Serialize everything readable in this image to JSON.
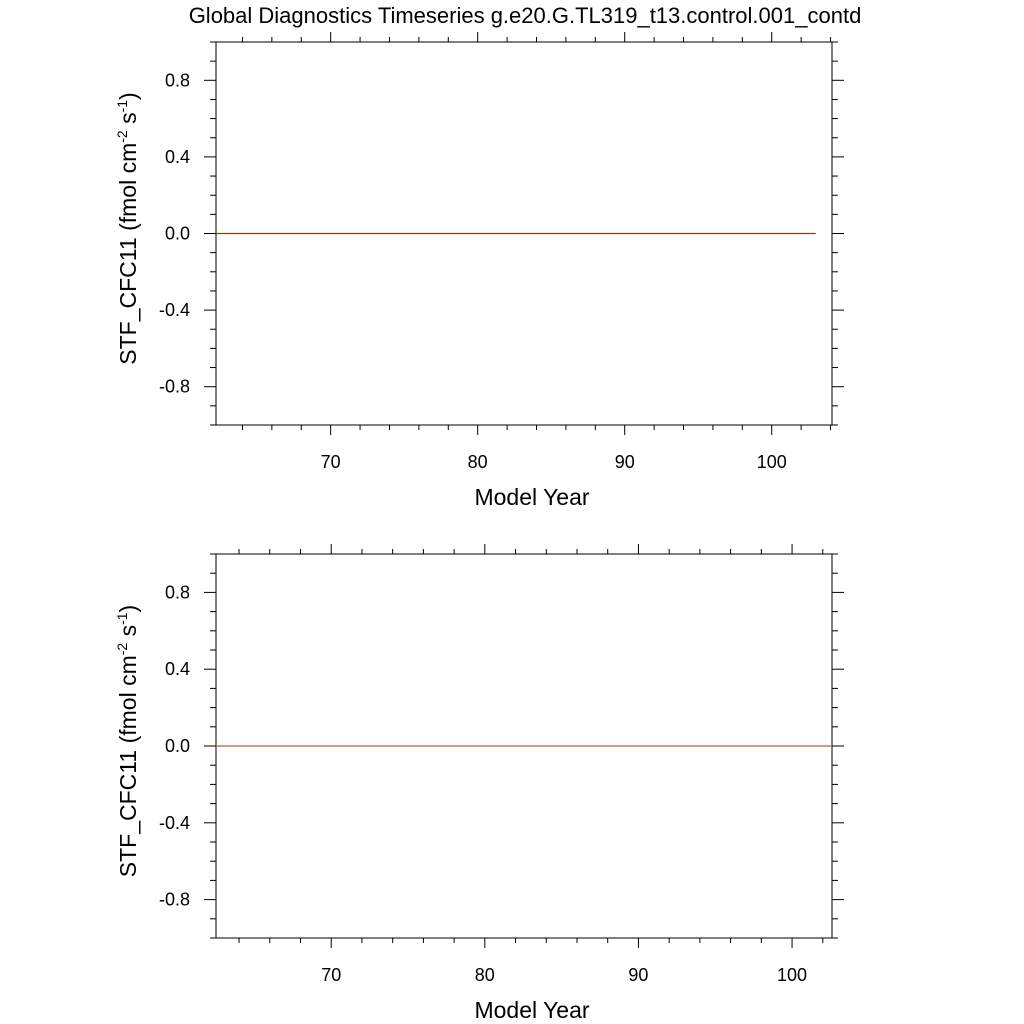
{
  "page": {
    "title": "Global Diagnostics Timeseries g.e20.G.TL319_t13.control.001_contd"
  },
  "chart_data": [
    {
      "type": "line",
      "xlabel": "Model Year",
      "ylabel": {
        "base": "STF_CFC11  (fmol cm",
        "sup1": "-2",
        "mid": " s",
        "sup2": "-1",
        "end": ")"
      },
      "xlim": [
        62.2,
        104.1
      ],
      "ylim": [
        -1.0,
        1.0
      ],
      "x_ticks": [
        70,
        80,
        90,
        100
      ],
      "x_tick_labels": [
        "70",
        "80",
        "90",
        "100"
      ],
      "y_ticks": [
        0.8,
        0.4,
        0.0,
        -0.4,
        -0.8
      ],
      "y_tick_labels": [
        "0.8",
        "0.4",
        "0.0",
        "-0.4",
        "-0.8"
      ],
      "grid": false,
      "series": [
        {
          "color": "#8b3a1a",
          "x": [
            62.2,
            103.0
          ],
          "y": [
            0.0,
            0.0
          ]
        }
      ]
    },
    {
      "type": "line",
      "xlabel": "Model Year",
      "ylabel": {
        "base": "STF_CFC11  (fmol cm",
        "sup1": "-2",
        "mid": " s",
        "sup2": "-1",
        "end": ")"
      },
      "xlim": [
        62.5,
        102.6
      ],
      "ylim": [
        -1.0,
        1.0
      ],
      "x_ticks": [
        70,
        80,
        90,
        100
      ],
      "x_tick_labels": [
        "70",
        "80",
        "90",
        "100"
      ],
      "y_ticks": [
        0.8,
        0.4,
        0.0,
        -0.4,
        -0.8
      ],
      "y_tick_labels": [
        "0.8",
        "0.4",
        "0.0",
        "-0.4",
        "-0.8"
      ],
      "grid": false,
      "series": [
        {
          "color": "#b5603a",
          "x": [
            62.5,
            102.6
          ],
          "y": [
            0.0,
            0.0
          ]
        }
      ]
    }
  ]
}
